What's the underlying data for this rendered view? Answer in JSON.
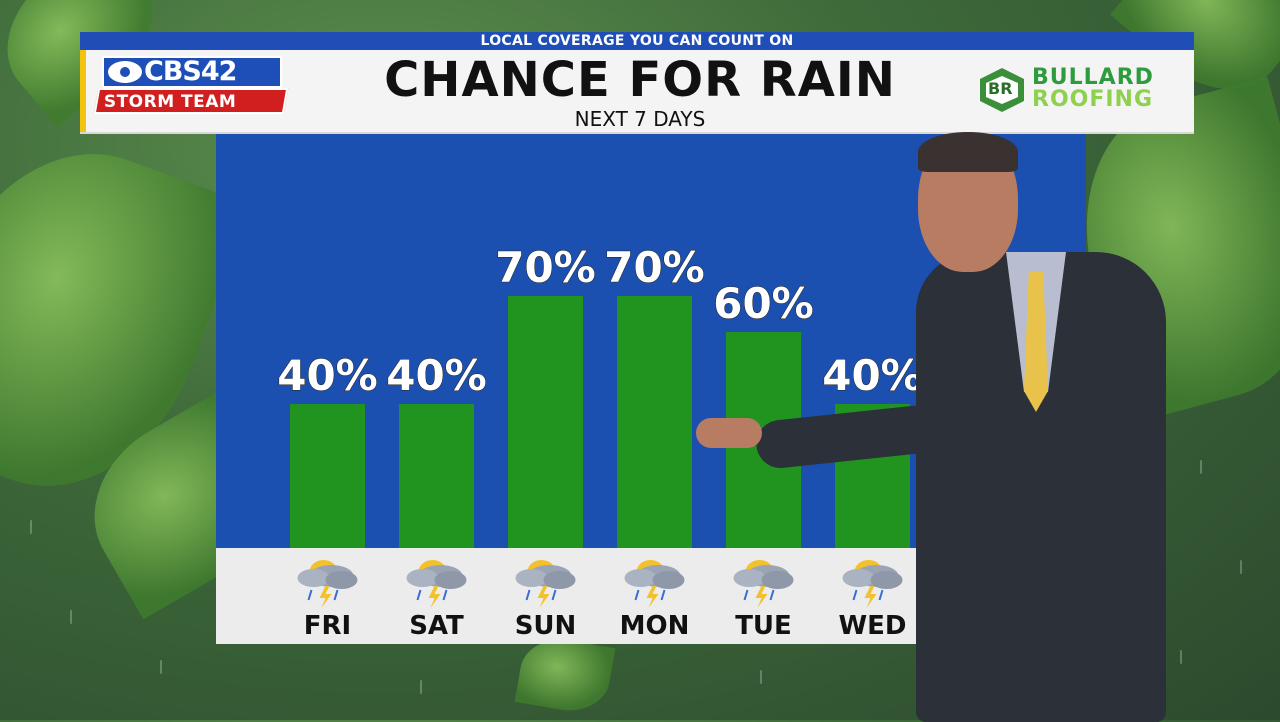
{
  "broadcast": {
    "tagline": "LOCAL COVERAGE YOU CAN COUNT ON",
    "station_logo": {
      "line1": "CBS42",
      "line2": "STORM TEAM"
    },
    "sponsor_logo": {
      "mark": "BR",
      "line1": "BULLARD",
      "line2": "ROOFING"
    }
  },
  "colors": {
    "plot_background": "#1c50b0",
    "bar_fill": "#20941f",
    "header_background": "#f4f4f4",
    "topbar": "#1f4fb6",
    "accent_red": "#d11f1f"
  },
  "chart_data": {
    "type": "bar",
    "title": "CHANCE FOR RAIN",
    "subtitle": "NEXT 7 DAYS",
    "categories": [
      "FRI",
      "SAT",
      "SUN",
      "MON",
      "TUE",
      "WED"
    ],
    "values": [
      40,
      40,
      70,
      70,
      60,
      40
    ],
    "value_labels": [
      "40%",
      "40%",
      "70%",
      "70%",
      "60%",
      "40%"
    ],
    "icons": [
      "thunderstorm-rain-icon",
      "thunderstorm-rain-icon",
      "thunderstorm-rain-icon",
      "thunderstorm-rain-icon",
      "thunderstorm-rain-icon",
      "thunderstorm-rain-icon"
    ],
    "ylim": [
      0,
      100
    ],
    "xlabel": "",
    "ylabel": "",
    "grid": false
  }
}
